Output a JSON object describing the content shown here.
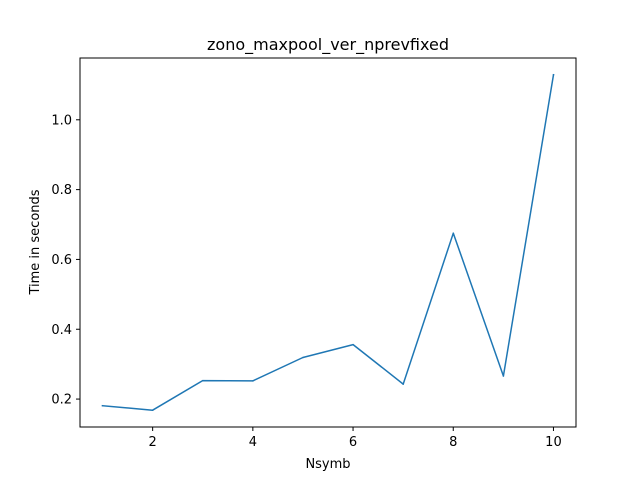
{
  "chart_data": {
    "type": "line",
    "title": "zono_maxpool_ver_nprevfixed",
    "xlabel": "Nsymb",
    "ylabel": "Time in seconds",
    "x": [
      1,
      2,
      3,
      4,
      5,
      6,
      7,
      8,
      9,
      10
    ],
    "series": [
      {
        "values": [
          0.181,
          0.168,
          0.253,
          0.252,
          0.319,
          0.356,
          0.243,
          0.675,
          0.266,
          1.129
        ],
        "color": "#1f77b4"
      }
    ],
    "xlim": [
      0.55,
      10.45
    ],
    "ylim": [
      0.12,
      1.177
    ],
    "xticks": [
      2,
      4,
      6,
      8,
      10
    ],
    "xtick_labels": [
      "2",
      "4",
      "6",
      "8",
      "10"
    ],
    "yticks": [
      0.2,
      0.4,
      0.6,
      0.8,
      1.0
    ],
    "ytick_labels": [
      "0.2",
      "0.4",
      "0.6",
      "0.8",
      "1.0"
    ],
    "grid": false,
    "legend": "none"
  }
}
